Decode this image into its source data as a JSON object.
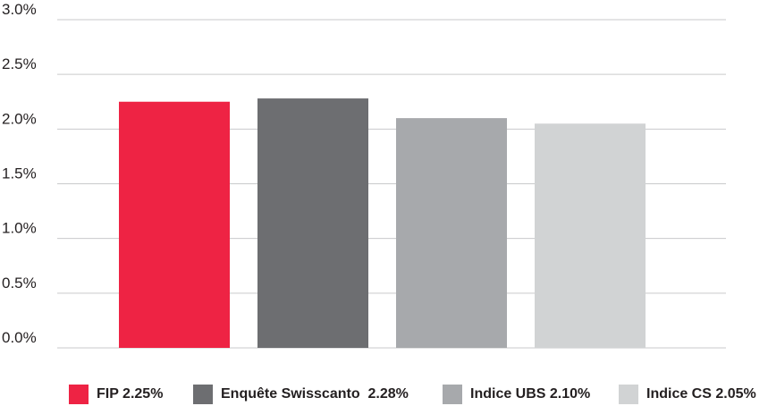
{
  "chart_data": {
    "type": "bar",
    "categories": [
      "FIP",
      "Enquête Swisscanto",
      "Indice UBS",
      "Indice CS"
    ],
    "values": [
      2.25,
      2.28,
      2.1,
      2.05
    ],
    "colors": [
      "#ee2344",
      "#6d6e71",
      "#a7a9ac",
      "#d1d3d4"
    ],
    "ylim": [
      0,
      3.0
    ],
    "yticks": [
      "0.0%",
      "0.5%",
      "1.0%",
      "1.5%",
      "2.0%",
      "2.5%",
      "3.0%"
    ],
    "grid": true,
    "legend_position": "bottom",
    "legend": [
      "FIP 2.25%",
      "Enquête Swisscanto  2.28%",
      "Indice UBS 2.10%",
      "Indice CS 2.05%"
    ]
  }
}
